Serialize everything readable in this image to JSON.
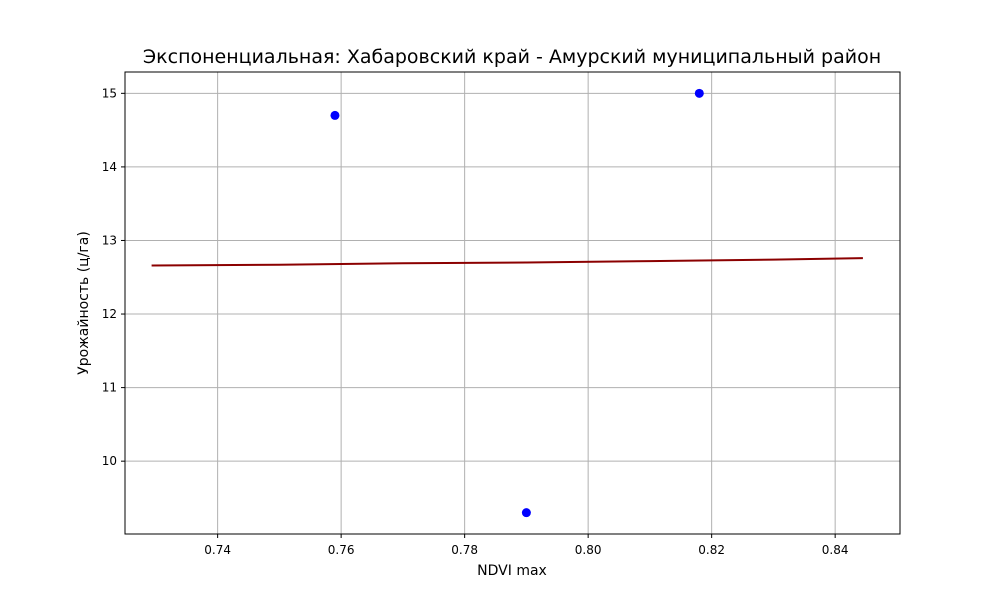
{
  "chart_data": {
    "type": "scatter",
    "title": "Экспоненциальная: Хабаровский край - Амурский муниципальный район",
    "xlabel": "NDVI max",
    "ylabel": "Урожайность (ц/га)",
    "xlim": [
      0.725,
      0.8505
    ],
    "ylim": [
      9.01,
      15.29
    ],
    "grid": true,
    "x_ticks": [
      {
        "value": 0.74,
        "label": "0.74"
      },
      {
        "value": 0.76,
        "label": "0.76"
      },
      {
        "value": 0.78,
        "label": "0.78"
      },
      {
        "value": 0.8,
        "label": "0.80"
      },
      {
        "value": 0.82,
        "label": "0.82"
      },
      {
        "value": 0.84,
        "label": "0.84"
      }
    ],
    "y_ticks": [
      {
        "value": 10,
        "label": "10"
      },
      {
        "value": 11,
        "label": "11"
      },
      {
        "value": 12,
        "label": "12"
      },
      {
        "value": 13,
        "label": "13"
      },
      {
        "value": 14,
        "label": "14"
      },
      {
        "value": 15,
        "label": "15"
      }
    ],
    "series": [
      {
        "kind": "points",
        "color": "#0000ff",
        "points": [
          {
            "x": 0.759,
            "y": 14.7
          },
          {
            "x": 0.79,
            "y": 9.3
          },
          {
            "x": 0.818,
            "y": 15.0
          }
        ]
      },
      {
        "kind": "line",
        "color": "#8b0000",
        "points": [
          {
            "x": 0.7293,
            "y": 12.66
          },
          {
            "x": 0.75,
            "y": 12.67
          },
          {
            "x": 0.77,
            "y": 12.69
          },
          {
            "x": 0.79,
            "y": 12.7
          },
          {
            "x": 0.81,
            "y": 12.72
          },
          {
            "x": 0.83,
            "y": 12.74
          },
          {
            "x": 0.8445,
            "y": 12.76
          }
        ]
      }
    ]
  }
}
